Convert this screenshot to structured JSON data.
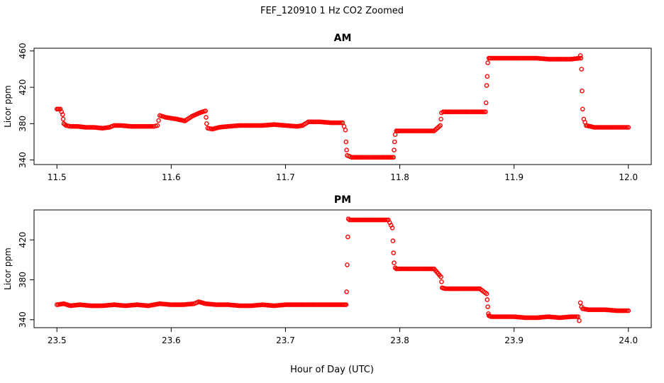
{
  "figure": {
    "title": "FEF_120910  1 Hz CO2 Zoomed",
    "xlabel": "Hour of Day (UTC)",
    "marker_color": "#ff0000"
  },
  "chart_data": [
    {
      "type": "scatter",
      "title": "AM",
      "xlabel": "",
      "ylabel": "Licor ppm",
      "xlim": [
        11.48,
        12.02
      ],
      "ylim": [
        335,
        463
      ],
      "xticks": [
        11.5,
        11.6,
        11.7,
        11.8,
        11.9,
        12.0
      ],
      "xtick_labels": [
        "11.5",
        "11.6",
        "11.7",
        "11.8",
        "11.9",
        "12.0"
      ],
      "yticks": [
        340,
        380,
        420,
        460
      ],
      "ytick_labels": [
        "340",
        "380",
        "420",
        "460"
      ],
      "grid": false,
      "series": [
        {
          "color": "#ff0000",
          "marker": "open-circle",
          "x": [
            11.5,
            11.503,
            11.505,
            11.5055,
            11.506,
            11.508,
            11.512,
            11.518,
            11.525,
            11.532,
            11.54,
            11.546,
            11.55,
            11.556,
            11.565,
            11.575,
            11.585,
            11.588,
            11.59,
            11.595,
            11.6,
            11.605,
            11.612,
            11.618,
            11.625,
            11.63,
            11.6305,
            11.631,
            11.632,
            11.636,
            11.642,
            11.65,
            11.66,
            11.67,
            11.68,
            11.69,
            11.7,
            11.71,
            11.715,
            11.72,
            11.73,
            11.74,
            11.75,
            11.7525,
            11.753,
            11.7535,
            11.754,
            11.758,
            11.765,
            11.775,
            11.785,
            11.7945,
            11.795,
            11.7955,
            11.796,
            11.797,
            11.8,
            11.81,
            11.82,
            11.83,
            11.8355,
            11.836,
            11.8365,
            11.838,
            11.845,
            11.855,
            11.865,
            11.875,
            11.8755,
            11.876,
            11.8765,
            11.877,
            11.878,
            11.88,
            11.89,
            11.9,
            11.91,
            11.92,
            11.93,
            11.94,
            11.95,
            11.957,
            11.958,
            11.9585,
            11.959,
            11.9595,
            11.96,
            11.961,
            11.963,
            11.97,
            11.98,
            11.99,
            12.0
          ],
          "y": [
            396,
            396,
            390,
            385,
            380,
            378,
            377,
            377,
            376,
            376,
            375,
            376,
            378,
            378,
            377,
            377,
            377,
            378,
            389,
            387,
            386,
            385,
            383,
            388,
            392,
            394,
            387,
            380,
            375,
            374,
            376,
            377,
            378,
            378,
            378,
            379,
            378,
            377,
            378,
            382,
            382,
            381,
            381,
            373,
            360,
            351,
            345,
            343,
            343,
            343,
            343,
            343,
            351,
            360,
            368,
            372,
            372,
            372,
            372,
            372,
            378,
            385,
            392,
            393,
            393,
            393,
            393,
            393,
            403,
            422,
            432,
            447,
            452,
            452,
            452,
            452,
            452,
            452,
            451,
            451,
            451,
            452,
            455,
            452,
            440,
            416,
            396,
            385,
            378,
            376,
            376,
            376,
            376
          ]
        }
      ]
    },
    {
      "type": "scatter",
      "title": "PM",
      "xlabel": "",
      "ylabel": "Licor ppm",
      "xlim": [
        23.48,
        24.02
      ],
      "ylim": [
        332,
        450
      ],
      "xticks": [
        23.5,
        23.6,
        23.7,
        23.8,
        23.9,
        24.0
      ],
      "xtick_labels": [
        "23.5",
        "23.6",
        "23.7",
        "23.8",
        "23.9",
        "24.0"
      ],
      "yticks": [
        340,
        380,
        420
      ],
      "ytick_labels": [
        "340",
        "380",
        "420"
      ],
      "grid": false,
      "series": [
        {
          "color": "#ff0000",
          "marker": "open-circle",
          "x": [
            23.5,
            23.506,
            23.512,
            23.52,
            23.53,
            23.54,
            23.55,
            23.56,
            23.57,
            23.58,
            23.59,
            23.6,
            23.61,
            23.62,
            23.624,
            23.63,
            23.64,
            23.65,
            23.66,
            23.67,
            23.68,
            23.69,
            23.7,
            23.71,
            23.72,
            23.73,
            23.74,
            23.75,
            23.753,
            23.7535,
            23.754,
            23.7545,
            23.755,
            23.756,
            23.76,
            23.77,
            23.78,
            23.79,
            23.7935,
            23.794,
            23.7945,
            23.795,
            23.796,
            23.797,
            23.8,
            23.81,
            23.82,
            23.83,
            23.836,
            23.8365,
            23.837,
            23.84,
            23.85,
            23.86,
            23.87,
            23.876,
            23.8765,
            23.877,
            23.8775,
            23.878,
            23.88,
            23.89,
            23.9,
            23.91,
            23.92,
            23.93,
            23.94,
            23.95,
            23.956,
            23.957,
            23.958,
            23.959,
            23.96,
            23.965,
            23.97,
            23.98,
            23.99,
            24.0
          ],
          "y": [
            355,
            356,
            354,
            355,
            354,
            354,
            355,
            354,
            355,
            354,
            356,
            355,
            355,
            356,
            358,
            356,
            355,
            355,
            354,
            354,
            355,
            354,
            355,
            355,
            355,
            355,
            355,
            355,
            355,
            368,
            395,
            423,
            441,
            440,
            440,
            440,
            440,
            440,
            432,
            419,
            407,
            397,
            392,
            391,
            391,
            391,
            391,
            391,
            383,
            378,
            372,
            371,
            371,
            371,
            371,
            366,
            360,
            353,
            346,
            344,
            343,
            343,
            343,
            342,
            342,
            343,
            342,
            343,
            343,
            339,
            357,
            353,
            351,
            350,
            350,
            350,
            349,
            349
          ]
        }
      ]
    }
  ]
}
